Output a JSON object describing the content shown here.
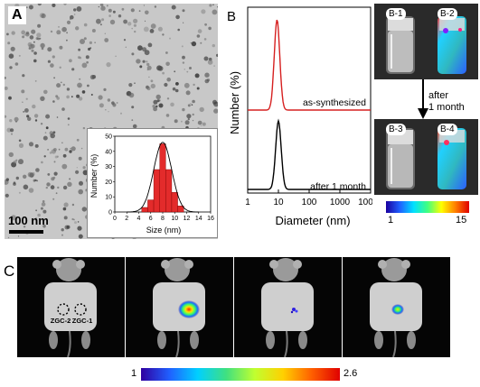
{
  "panel_a": {
    "letter": "A",
    "scale_bar_label": "100 nm",
    "inset_chart": {
      "chart_data": {
        "type": "bar",
        "xlabel": "Size (nm)",
        "ylabel": "Number (%)",
        "xlim": [
          0,
          16
        ],
        "ylim": [
          0,
          50
        ],
        "x_ticks": [
          "0",
          "2",
          "4",
          "6",
          "8",
          "10",
          "12",
          "14",
          "16"
        ],
        "y_ticks": [
          "0",
          "10",
          "20",
          "30",
          "40",
          "50"
        ],
        "bars": [
          {
            "x": 5,
            "y": 3
          },
          {
            "x": 6,
            "y": 8
          },
          {
            "x": 7,
            "y": 28
          },
          {
            "x": 8,
            "y": 45
          },
          {
            "x": 9,
            "y": 28
          },
          {
            "x": 10,
            "y": 13
          },
          {
            "x": 11,
            "y": 4
          }
        ],
        "fit": "gaussian"
      }
    }
  },
  "panel_b": {
    "letter": "B",
    "chart_data": {
      "type": "line",
      "xlabel": "Diameter (nm)",
      "ylabel": "Number (%)",
      "x_scale": "log",
      "x_ticks": [
        "1",
        "10",
        "100",
        "1000",
        "10000"
      ],
      "series": [
        {
          "name": "as-synthesized",
          "color": "#d62020",
          "peak_x": 9
        },
        {
          "name": "after 1 month",
          "color": "#000000",
          "peak_x": 10
        }
      ]
    },
    "vials": [
      {
        "label": "B-1"
      },
      {
        "label": "B-2"
      },
      {
        "label": "B-3"
      },
      {
        "label": "B-4"
      }
    ],
    "arrow_label_line1": "after",
    "arrow_label_line2": "1 month",
    "colorbar": {
      "min": "1",
      "max": "15"
    }
  },
  "panel_c": {
    "letter": "C",
    "injection_labels": [
      "ZGC-2",
      "ZGC-1"
    ],
    "colorbar": {
      "min": "1",
      "max": "2.6"
    }
  }
}
